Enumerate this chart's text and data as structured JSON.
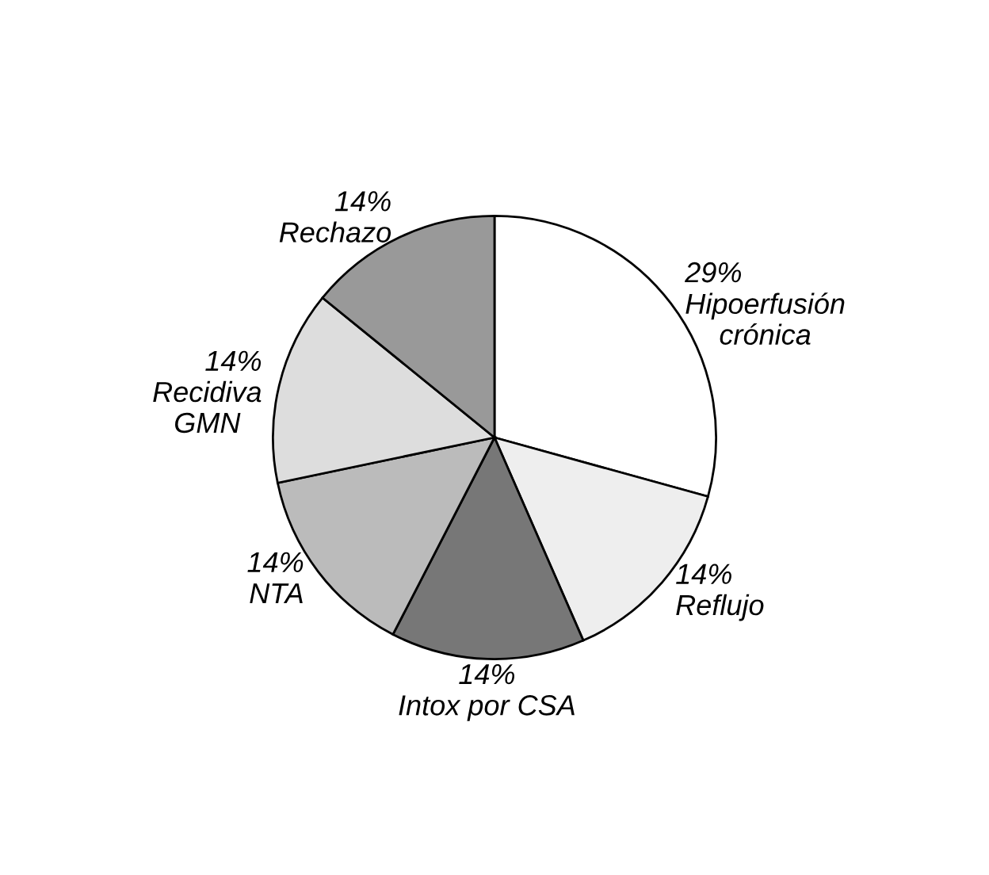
{
  "chart_data": {
    "type": "pie",
    "categories": [
      "Hipoerfusión\ncrónica",
      "Reflujo",
      "Intox por CSA",
      "NTA",
      "Recidiva\nGMN",
      "Rechazo"
    ],
    "values": [
      29,
      14,
      14,
      14,
      14,
      14
    ],
    "colors": [
      "#ffffff",
      "#eeeeee",
      "#777777",
      "#bbbbbb",
      "#dddddd",
      "#999999"
    ],
    "value_labels": [
      "29%",
      "14%",
      "14%",
      "14%",
      "14%",
      "14%"
    ],
    "legend": false
  }
}
